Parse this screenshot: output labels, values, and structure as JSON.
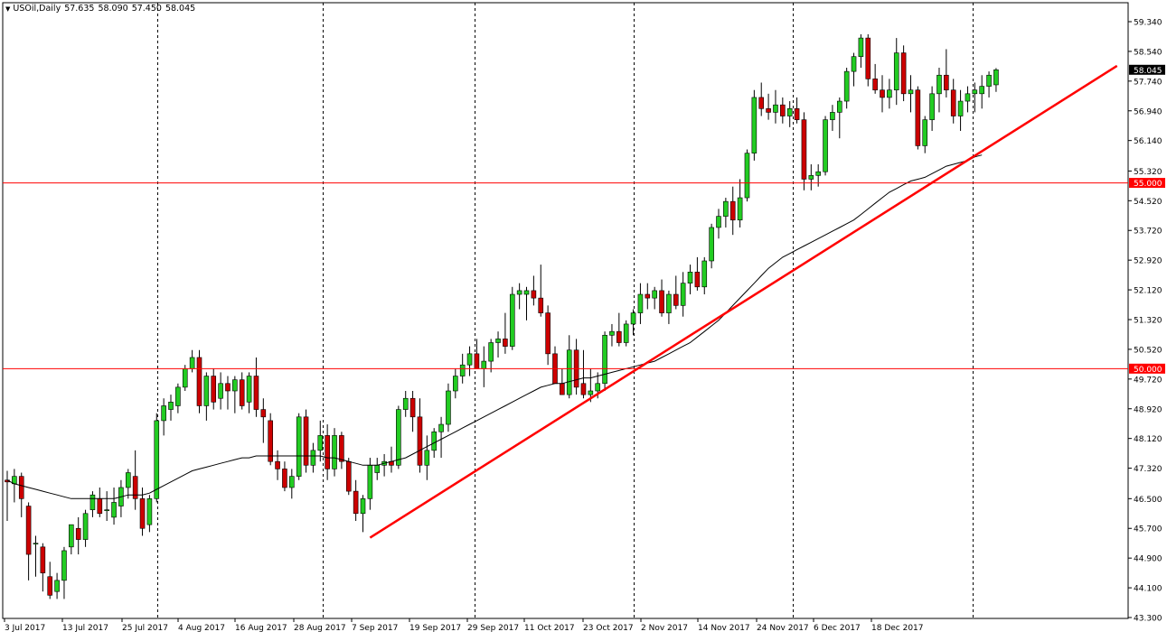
{
  "header": {
    "symbol": "USOil,Daily",
    "open": "57.635",
    "high": "58.090",
    "low": "57.450",
    "close": "58.045"
  },
  "colors": {
    "bull": "#22cc22",
    "bear": "#cc0000",
    "ma": "#000000",
    "hline": "#ff0000",
    "trendline": "#ff0000",
    "price_tag_bg": "#000000",
    "level_tag_bg": "#ff0000"
  },
  "chart_data": {
    "type": "candlestick",
    "yticks": [
      "59.340",
      "58.540",
      "57.740",
      "56.940",
      "56.140",
      "55.320",
      "54.520",
      "53.720",
      "52.920",
      "52.120",
      "51.320",
      "50.520",
      "49.720",
      "48.920",
      "48.120",
      "47.320",
      "46.500",
      "45.700",
      "44.900",
      "44.100",
      "43.300"
    ],
    "ylim": [
      43.3,
      59.34
    ],
    "xticks": [
      "3 Jul 2017",
      "13 Jul 2017",
      "25 Jul 2017",
      "4 Aug 2017",
      "16 Aug 2017",
      "28 Aug 2017",
      "7 Sep 2017",
      "19 Sep 2017",
      "29 Sep 2017",
      "11 Oct 2017",
      "23 Oct 2017",
      "2 Nov 2017",
      "14 Nov 2017",
      "24 Nov 2017",
      "6 Dec 2017",
      "18 Dec 2017"
    ],
    "horizontal_levels": [
      {
        "value": 55.0,
        "label": "55.000"
      },
      {
        "value": 50.0,
        "label": "50.000"
      }
    ],
    "current_price": {
      "value": 58.045,
      "label": "58.045"
    },
    "trendline": {
      "from": {
        "bar": 51,
        "price": 45.45
      },
      "to": {
        "bar": 156,
        "price": 58.15
      }
    },
    "candles": [
      [
        47.0,
        47.25,
        45.9,
        46.95
      ],
      [
        46.9,
        47.3,
        46.4,
        47.1
      ],
      [
        47.1,
        47.2,
        46.0,
        46.5
      ],
      [
        46.3,
        46.4,
        44.3,
        45.0
      ],
      [
        45.3,
        45.5,
        44.4,
        45.3
      ],
      [
        45.2,
        45.3,
        44.0,
        44.5
      ],
      [
        44.4,
        44.8,
        43.8,
        43.9
      ],
      [
        44.0,
        44.5,
        43.8,
        44.3
      ],
      [
        44.3,
        45.2,
        43.8,
        45.1
      ],
      [
        45.2,
        45.8,
        45.0,
        45.8
      ],
      [
        45.7,
        46.0,
        45.0,
        45.4
      ],
      [
        45.4,
        46.2,
        45.2,
        46.1
      ],
      [
        46.2,
        46.7,
        46.0,
        46.6
      ],
      [
        46.5,
        46.8,
        46.0,
        46.1
      ],
      [
        46.2,
        46.7,
        45.9,
        46.2
      ],
      [
        46.0,
        46.8,
        45.8,
        46.4
      ],
      [
        46.3,
        47.0,
        46.0,
        46.8
      ],
      [
        46.8,
        47.3,
        46.5,
        47.2
      ],
      [
        47.1,
        47.8,
        46.2,
        46.5
      ],
      [
        46.5,
        46.8,
        45.5,
        45.7
      ],
      [
        45.8,
        46.6,
        45.6,
        46.5
      ],
      [
        46.5,
        48.8,
        46.4,
        48.6
      ],
      [
        48.6,
        49.2,
        48.2,
        49.0
      ],
      [
        48.9,
        49.3,
        48.6,
        49.1
      ],
      [
        49.0,
        49.6,
        48.8,
        49.5
      ],
      [
        49.5,
        50.1,
        49.4,
        50.0
      ],
      [
        50.0,
        50.5,
        49.9,
        50.3
      ],
      [
        50.3,
        50.5,
        48.8,
        49.0
      ],
      [
        49.0,
        49.9,
        48.6,
        49.8
      ],
      [
        49.8,
        50.0,
        48.9,
        49.1
      ],
      [
        49.2,
        49.9,
        48.9,
        49.6
      ],
      [
        49.6,
        49.8,
        48.9,
        49.4
      ],
      [
        49.4,
        49.8,
        48.8,
        49.7
      ],
      [
        49.7,
        49.9,
        48.9,
        49.0
      ],
      [
        49.1,
        49.9,
        48.8,
        49.8
      ],
      [
        49.8,
        50.3,
        48.7,
        48.9
      ],
      [
        48.9,
        49.2,
        48.0,
        48.7
      ],
      [
        48.6,
        48.8,
        47.4,
        47.5
      ],
      [
        47.5,
        47.8,
        47.0,
        47.3
      ],
      [
        47.3,
        47.5,
        46.7,
        46.8
      ],
      [
        46.8,
        47.3,
        46.5,
        47.1
      ],
      [
        47.1,
        48.8,
        47.0,
        48.7
      ],
      [
        48.7,
        48.9,
        47.2,
        47.4
      ],
      [
        47.4,
        48.0,
        47.2,
        47.8
      ],
      [
        47.8,
        48.6,
        47.5,
        48.2
      ],
      [
        48.2,
        48.5,
        47.0,
        47.3
      ],
      [
        47.3,
        48.4,
        47.1,
        48.2
      ],
      [
        48.2,
        48.3,
        47.3,
        47.5
      ],
      [
        47.5,
        47.6,
        46.6,
        46.7
      ],
      [
        46.7,
        47.0,
        45.9,
        46.1
      ],
      [
        46.1,
        46.6,
        45.6,
        46.5
      ],
      [
        46.5,
        47.6,
        46.2,
        47.4
      ],
      [
        47.2,
        47.6,
        47.0,
        47.4
      ],
      [
        47.4,
        47.7,
        47.1,
        47.5
      ],
      [
        47.5,
        47.9,
        47.2,
        47.4
      ],
      [
        47.4,
        49.0,
        47.3,
        48.9
      ],
      [
        48.9,
        49.4,
        48.7,
        49.2
      ],
      [
        49.2,
        49.4,
        48.3,
        48.7
      ],
      [
        48.7,
        49.2,
        47.2,
        47.4
      ],
      [
        47.4,
        48.2,
        47.0,
        47.8
      ],
      [
        47.8,
        48.4,
        47.6,
        48.3
      ],
      [
        48.3,
        48.7,
        47.6,
        48.5
      ],
      [
        48.5,
        49.6,
        48.3,
        49.4
      ],
      [
        49.4,
        50.0,
        49.2,
        49.8
      ],
      [
        49.8,
        50.4,
        49.6,
        50.1
      ],
      [
        50.1,
        50.6,
        49.8,
        50.4
      ],
      [
        50.4,
        50.8,
        50.0,
        50.0
      ],
      [
        50.0,
        50.6,
        49.5,
        50.2
      ],
      [
        50.2,
        50.8,
        49.9,
        50.7
      ],
      [
        50.7,
        51.0,
        50.3,
        50.8
      ],
      [
        50.8,
        51.5,
        50.4,
        50.6
      ],
      [
        50.6,
        52.2,
        50.5,
        52.0
      ],
      [
        52.0,
        52.3,
        51.6,
        52.1
      ],
      [
        52.0,
        52.2,
        51.3,
        52.1
      ],
      [
        52.1,
        52.5,
        51.7,
        51.9
      ],
      [
        51.9,
        52.8,
        51.4,
        51.5
      ],
      [
        51.5,
        51.7,
        50.1,
        50.4
      ],
      [
        50.4,
        50.6,
        49.6,
        49.6
      ],
      [
        49.6,
        50.0,
        49.3,
        49.3
      ],
      [
        49.3,
        50.9,
        49.2,
        50.5
      ],
      [
        50.5,
        50.8,
        49.3,
        49.5
      ],
      [
        49.6,
        50.5,
        49.2,
        49.3
      ],
      [
        49.3,
        50.0,
        49.1,
        49.4
      ],
      [
        49.4,
        49.9,
        49.2,
        49.6
      ],
      [
        49.6,
        51.0,
        49.4,
        50.9
      ],
      [
        50.9,
        51.2,
        50.6,
        51.0
      ],
      [
        51.0,
        51.5,
        50.6,
        50.7
      ],
      [
        50.7,
        51.3,
        50.6,
        51.2
      ],
      [
        51.2,
        51.6,
        50.9,
        51.5
      ],
      [
        51.5,
        52.3,
        51.2,
        52.0
      ],
      [
        52.0,
        52.3,
        51.6,
        51.9
      ],
      [
        51.9,
        52.2,
        51.6,
        52.1
      ],
      [
        52.1,
        52.4,
        51.4,
        51.5
      ],
      [
        51.5,
        52.1,
        51.2,
        52.0
      ],
      [
        52.0,
        52.5,
        51.6,
        51.7
      ],
      [
        51.7,
        52.6,
        51.4,
        52.3
      ],
      [
        52.3,
        52.8,
        52.0,
        52.6
      ],
      [
        52.6,
        53.0,
        52.1,
        52.2
      ],
      [
        52.2,
        53.0,
        52.0,
        52.9
      ],
      [
        52.9,
        53.9,
        52.7,
        53.8
      ],
      [
        53.8,
        54.3,
        53.5,
        54.1
      ],
      [
        54.1,
        54.6,
        53.8,
        54.5
      ],
      [
        54.5,
        54.9,
        53.6,
        54.0
      ],
      [
        54.0,
        55.1,
        53.8,
        54.6
      ],
      [
        54.6,
        55.9,
        54.5,
        55.8
      ],
      [
        55.8,
        57.5,
        55.6,
        57.3
      ],
      [
        57.3,
        57.7,
        56.8,
        57.0
      ],
      [
        57.0,
        57.4,
        56.7,
        56.9
      ],
      [
        56.9,
        57.5,
        56.6,
        57.1
      ],
      [
        57.1,
        57.3,
        56.6,
        56.8
      ],
      [
        56.8,
        57.2,
        56.5,
        57.0
      ],
      [
        57.0,
        57.3,
        56.6,
        56.7
      ],
      [
        56.7,
        56.9,
        54.8,
        55.1
      ],
      [
        55.1,
        55.5,
        54.8,
        55.2
      ],
      [
        55.2,
        55.5,
        54.9,
        55.3
      ],
      [
        55.3,
        56.8,
        55.2,
        56.7
      ],
      [
        56.7,
        57.1,
        56.4,
        56.9
      ],
      [
        56.9,
        57.3,
        56.2,
        57.2
      ],
      [
        57.2,
        58.1,
        57.0,
        58.0
      ],
      [
        58.0,
        58.5,
        57.6,
        58.4
      ],
      [
        58.4,
        59.0,
        58.1,
        58.9
      ],
      [
        58.9,
        59.0,
        57.6,
        57.8
      ],
      [
        57.8,
        58.2,
        57.4,
        57.5
      ],
      [
        57.5,
        57.9,
        56.9,
        57.3
      ],
      [
        57.3,
        57.8,
        57.0,
        57.5
      ],
      [
        57.5,
        58.9,
        57.1,
        58.5
      ],
      [
        58.5,
        58.7,
        57.2,
        57.4
      ],
      [
        57.4,
        57.9,
        56.9,
        57.5
      ],
      [
        57.5,
        57.6,
        55.9,
        56.0
      ],
      [
        56.0,
        56.8,
        55.8,
        56.7
      ],
      [
        56.7,
        57.6,
        56.4,
        57.4
      ],
      [
        57.4,
        58.1,
        56.9,
        57.9
      ],
      [
        57.9,
        58.6,
        57.3,
        57.5
      ],
      [
        57.5,
        57.8,
        56.6,
        56.8
      ],
      [
        56.8,
        57.5,
        56.4,
        57.2
      ],
      [
        57.2,
        57.6,
        56.9,
        57.4
      ],
      [
        57.4,
        57.7,
        56.9,
        57.5
      ],
      [
        57.4,
        57.9,
        57.0,
        57.6
      ],
      [
        57.6,
        58.0,
        57.3,
        57.9
      ],
      [
        57.64,
        58.09,
        57.45,
        58.045
      ]
    ],
    "ma_values": [
      47.0,
      46.9,
      46.85,
      46.8,
      46.75,
      46.7,
      46.65,
      46.6,
      46.55,
      46.5,
      46.5,
      46.5,
      46.5,
      46.5,
      46.5,
      46.5,
      46.55,
      46.6,
      46.6,
      46.6,
      46.65,
      46.75,
      46.85,
      46.95,
      47.05,
      47.15,
      47.25,
      47.3,
      47.35,
      47.4,
      47.45,
      47.5,
      47.55,
      47.6,
      47.6,
      47.65,
      47.65,
      47.65,
      47.65,
      47.65,
      47.65,
      47.65,
      47.65,
      47.65,
      47.65,
      47.6,
      47.6,
      47.55,
      47.5,
      47.45,
      47.4,
      47.4,
      47.4,
      47.45,
      47.5,
      47.55,
      47.6,
      47.7,
      47.8,
      47.9,
      48.0,
      48.1,
      48.2,
      48.3,
      48.4,
      48.5,
      48.6,
      48.7,
      48.8,
      48.9,
      49.0,
      49.1,
      49.2,
      49.3,
      49.4,
      49.5,
      49.55,
      49.6,
      49.6,
      49.65,
      49.7,
      49.75,
      49.75,
      49.8,
      49.85,
      49.9,
      49.95,
      50.0,
      50.05,
      50.1,
      50.15,
      50.2,
      50.3,
      50.4,
      50.5,
      50.6,
      50.7,
      50.85,
      51.0,
      51.15,
      51.3,
      51.5,
      51.7,
      51.9,
      52.1,
      52.3,
      52.5,
      52.7,
      52.85,
      53.0,
      53.1,
      53.2,
      53.3,
      53.4,
      53.5,
      53.6,
      53.7,
      53.8,
      53.9,
      54.0,
      54.15,
      54.3,
      54.45,
      54.6,
      54.75,
      54.85,
      54.95,
      55.05,
      55.1,
      55.15,
      55.25,
      55.35,
      55.45,
      55.5,
      55.55,
      55.6,
      55.7,
      55.75
    ],
    "ma_start_bar": 0
  }
}
